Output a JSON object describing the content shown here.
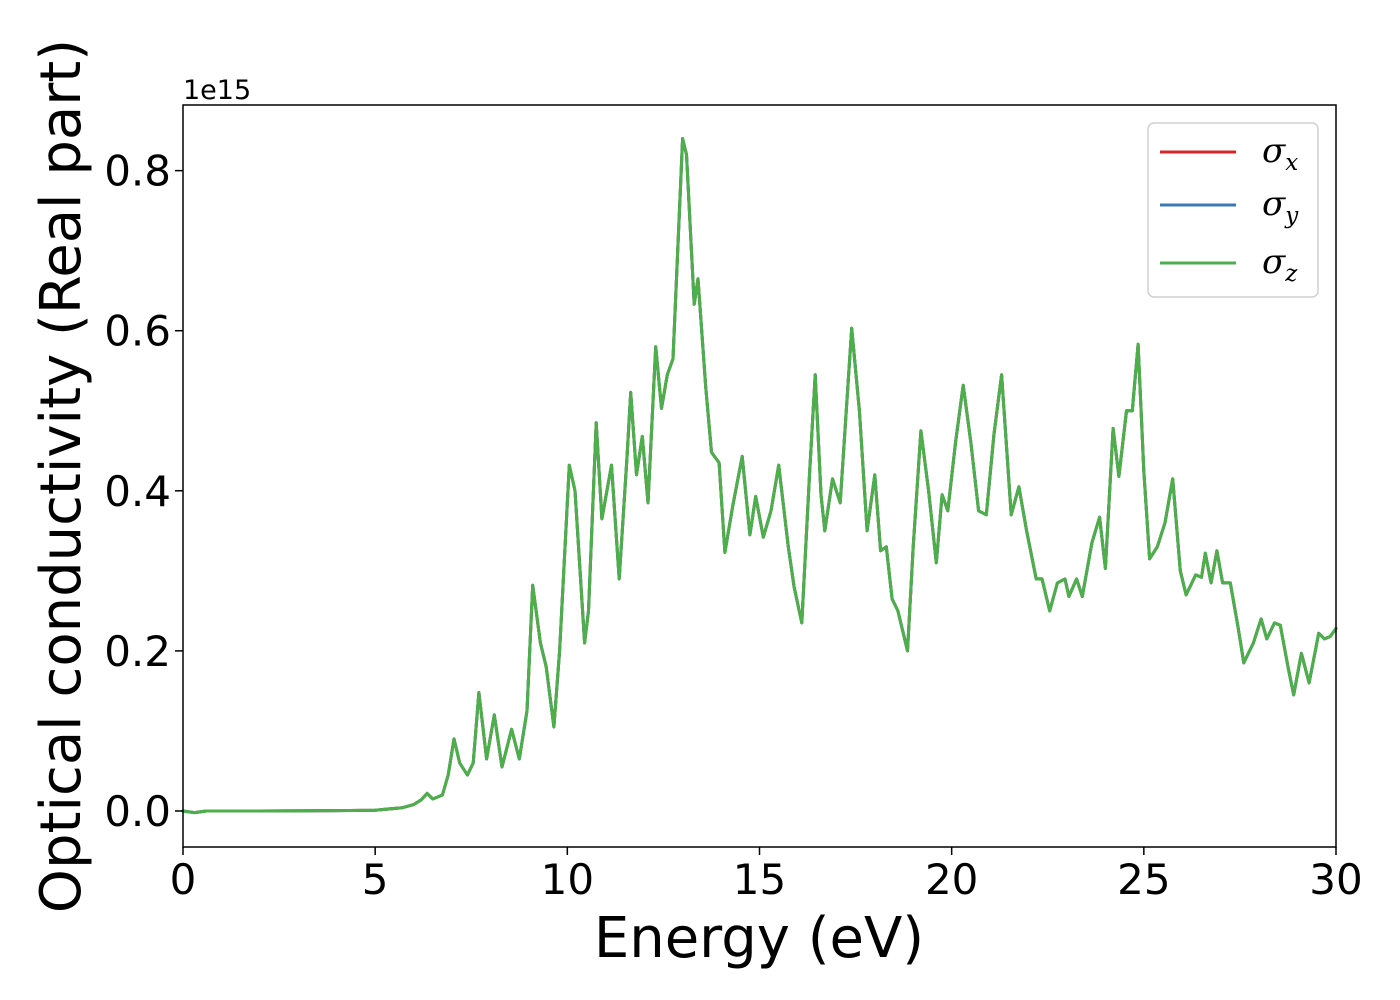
{
  "chart_data": {
    "type": "line",
    "xlabel": "Energy (eV)",
    "ylabel": "Optical conductivity (Real part)",
    "y_offset_label": "1e15",
    "xlim": [
      0,
      30
    ],
    "ylim": [
      -0.045,
      0.882
    ],
    "x_ticks": [
      0,
      5,
      10,
      15,
      20,
      25,
      30
    ],
    "x_tick_labels": [
      "0",
      "5",
      "10",
      "15",
      "20",
      "25",
      "30"
    ],
    "y_ticks": [
      0.0,
      0.2,
      0.4,
      0.6,
      0.8
    ],
    "y_tick_labels": [
      "0.0",
      "0.2",
      "0.4",
      "0.6",
      "0.8"
    ],
    "grid": false,
    "legend_position": "top-right",
    "series": [
      {
        "name": "σx",
        "symbol": "σ",
        "subscript": "x",
        "color": "#d62728",
        "same_as": "σz"
      },
      {
        "name": "σy",
        "symbol": "σ",
        "subscript": "y",
        "color": "#3b78b5",
        "same_as": "σz"
      },
      {
        "name": "σz",
        "symbol": "σ",
        "subscript": "z",
        "color": "#4daf4a",
        "points": [
          [
            0,
            0.0
          ],
          [
            0.3,
            -0.002
          ],
          [
            0.6,
            0.0
          ],
          [
            2,
            0.0
          ],
          [
            4,
            0.0005
          ],
          [
            5,
            0.001
          ],
          [
            5.7,
            0.004
          ],
          [
            6.0,
            0.008
          ],
          [
            6.2,
            0.014
          ],
          [
            6.35,
            0.022
          ],
          [
            6.5,
            0.015
          ],
          [
            6.75,
            0.02
          ],
          [
            6.9,
            0.045
          ],
          [
            7.05,
            0.09
          ],
          [
            7.2,
            0.06
          ],
          [
            7.4,
            0.045
          ],
          [
            7.55,
            0.06
          ],
          [
            7.7,
            0.148
          ],
          [
            7.9,
            0.065
          ],
          [
            8.1,
            0.12
          ],
          [
            8.3,
            0.055
          ],
          [
            8.55,
            0.102
          ],
          [
            8.75,
            0.065
          ],
          [
            8.95,
            0.125
          ],
          [
            9.1,
            0.282
          ],
          [
            9.3,
            0.21
          ],
          [
            9.45,
            0.18
          ],
          [
            9.65,
            0.105
          ],
          [
            9.8,
            0.2
          ],
          [
            10.05,
            0.432
          ],
          [
            10.2,
            0.4
          ],
          [
            10.45,
            0.21
          ],
          [
            10.55,
            0.25
          ],
          [
            10.75,
            0.485
          ],
          [
            10.9,
            0.365
          ],
          [
            11.15,
            0.432
          ],
          [
            11.35,
            0.29
          ],
          [
            11.55,
            0.44
          ],
          [
            11.65,
            0.523
          ],
          [
            11.8,
            0.42
          ],
          [
            11.95,
            0.468
          ],
          [
            12.1,
            0.385
          ],
          [
            12.3,
            0.58
          ],
          [
            12.45,
            0.503
          ],
          [
            12.6,
            0.545
          ],
          [
            12.75,
            0.565
          ],
          [
            13.0,
            0.84
          ],
          [
            13.1,
            0.82
          ],
          [
            13.3,
            0.633
          ],
          [
            13.4,
            0.665
          ],
          [
            13.6,
            0.53
          ],
          [
            13.75,
            0.448
          ],
          [
            13.95,
            0.435
          ],
          [
            14.1,
            0.323
          ],
          [
            14.3,
            0.38
          ],
          [
            14.55,
            0.443
          ],
          [
            14.75,
            0.345
          ],
          [
            14.9,
            0.393
          ],
          [
            15.1,
            0.342
          ],
          [
            15.3,
            0.375
          ],
          [
            15.5,
            0.432
          ],
          [
            15.75,
            0.33
          ],
          [
            15.9,
            0.28
          ],
          [
            16.1,
            0.235
          ],
          [
            16.3,
            0.42
          ],
          [
            16.45,
            0.545
          ],
          [
            16.6,
            0.395
          ],
          [
            16.7,
            0.35
          ],
          [
            16.9,
            0.415
          ],
          [
            17.1,
            0.385
          ],
          [
            17.4,
            0.603
          ],
          [
            17.6,
            0.5
          ],
          [
            17.8,
            0.35
          ],
          [
            18.0,
            0.42
          ],
          [
            18.15,
            0.325
          ],
          [
            18.3,
            0.33
          ],
          [
            18.45,
            0.265
          ],
          [
            18.6,
            0.25
          ],
          [
            18.85,
            0.2
          ],
          [
            19.0,
            0.33
          ],
          [
            19.2,
            0.475
          ],
          [
            19.4,
            0.4
          ],
          [
            19.6,
            0.31
          ],
          [
            19.75,
            0.395
          ],
          [
            19.9,
            0.375
          ],
          [
            20.1,
            0.46
          ],
          [
            20.3,
            0.532
          ],
          [
            20.5,
            0.46
          ],
          [
            20.7,
            0.375
          ],
          [
            20.9,
            0.37
          ],
          [
            21.1,
            0.47
          ],
          [
            21.3,
            0.545
          ],
          [
            21.55,
            0.37
          ],
          [
            21.75,
            0.405
          ],
          [
            21.95,
            0.35
          ],
          [
            22.2,
            0.29
          ],
          [
            22.35,
            0.29
          ],
          [
            22.55,
            0.25
          ],
          [
            22.75,
            0.285
          ],
          [
            22.95,
            0.29
          ],
          [
            23.05,
            0.268
          ],
          [
            23.25,
            0.29
          ],
          [
            23.4,
            0.268
          ],
          [
            23.65,
            0.335
          ],
          [
            23.85,
            0.367
          ],
          [
            24.0,
            0.303
          ],
          [
            24.2,
            0.478
          ],
          [
            24.35,
            0.418
          ],
          [
            24.55,
            0.5
          ],
          [
            24.7,
            0.5
          ],
          [
            24.85,
            0.583
          ],
          [
            25.0,
            0.425
          ],
          [
            25.15,
            0.315
          ],
          [
            25.35,
            0.33
          ],
          [
            25.55,
            0.36
          ],
          [
            25.75,
            0.415
          ],
          [
            25.95,
            0.3
          ],
          [
            26.1,
            0.27
          ],
          [
            26.35,
            0.295
          ],
          [
            26.5,
            0.292
          ],
          [
            26.6,
            0.322
          ],
          [
            26.75,
            0.285
          ],
          [
            26.9,
            0.325
          ],
          [
            27.05,
            0.285
          ],
          [
            27.25,
            0.285
          ],
          [
            27.45,
            0.23
          ],
          [
            27.6,
            0.185
          ],
          [
            27.85,
            0.21
          ],
          [
            28.05,
            0.24
          ],
          [
            28.2,
            0.215
          ],
          [
            28.4,
            0.235
          ],
          [
            28.55,
            0.232
          ],
          [
            28.75,
            0.18
          ],
          [
            28.9,
            0.145
          ],
          [
            29.1,
            0.197
          ],
          [
            29.3,
            0.16
          ],
          [
            29.55,
            0.222
          ],
          [
            29.7,
            0.215
          ],
          [
            29.85,
            0.218
          ],
          [
            30.0,
            0.228
          ]
        ]
      }
    ]
  }
}
